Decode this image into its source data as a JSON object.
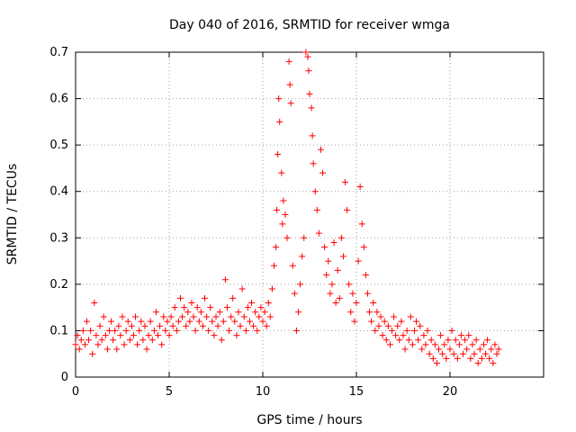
{
  "chart_data": {
    "type": "scatter",
    "title": "Day 040 of 2016, SRMTID for receiver wmga",
    "xlabel": "GPS time / hours",
    "ylabel": "SRMTID / TECUs",
    "xlim": [
      0,
      25
    ],
    "ylim": [
      0,
      0.7
    ],
    "xticks": [
      0,
      5,
      10,
      15,
      20
    ],
    "xtick_labels": [
      "0",
      "5",
      "10",
      "15",
      "20"
    ],
    "yticks": [
      0,
      0.1,
      0.2,
      0.3,
      0.4,
      0.5,
      0.6,
      0.7
    ],
    "ytick_labels": [
      "0",
      "0.1",
      "0.2",
      "0.3",
      "0.4",
      "0.5",
      "0.6",
      "0.7"
    ],
    "grid": true,
    "marker": "+",
    "color": "#ff0000",
    "series": [
      {
        "name": "SRMTID",
        "points": [
          [
            0.0,
            0.07
          ],
          [
            0.1,
            0.09
          ],
          [
            0.2,
            0.06
          ],
          [
            0.3,
            0.08
          ],
          [
            0.4,
            0.1
          ],
          [
            0.5,
            0.07
          ],
          [
            0.6,
            0.12
          ],
          [
            0.7,
            0.08
          ],
          [
            0.8,
            0.1
          ],
          [
            0.9,
            0.05
          ],
          [
            1.0,
            0.16
          ],
          [
            1.1,
            0.09
          ],
          [
            1.2,
            0.07
          ],
          [
            1.3,
            0.11
          ],
          [
            1.4,
            0.08
          ],
          [
            1.5,
            0.13
          ],
          [
            1.6,
            0.09
          ],
          [
            1.7,
            0.06
          ],
          [
            1.8,
            0.1
          ],
          [
            1.9,
            0.12
          ],
          [
            2.0,
            0.08
          ],
          [
            2.1,
            0.1
          ],
          [
            2.2,
            0.06
          ],
          [
            2.3,
            0.11
          ],
          [
            2.4,
            0.09
          ],
          [
            2.5,
            0.13
          ],
          [
            2.6,
            0.07
          ],
          [
            2.7,
            0.1
          ],
          [
            2.8,
            0.12
          ],
          [
            2.9,
            0.08
          ],
          [
            3.0,
            0.11
          ],
          [
            3.1,
            0.09
          ],
          [
            3.2,
            0.13
          ],
          [
            3.3,
            0.07
          ],
          [
            3.4,
            0.1
          ],
          [
            3.5,
            0.12
          ],
          [
            3.6,
            0.08
          ],
          [
            3.7,
            0.11
          ],
          [
            3.8,
            0.06
          ],
          [
            3.9,
            0.09
          ],
          [
            4.0,
            0.12
          ],
          [
            4.1,
            0.08
          ],
          [
            4.2,
            0.1
          ],
          [
            4.3,
            0.14
          ],
          [
            4.4,
            0.09
          ],
          [
            4.5,
            0.11
          ],
          [
            4.6,
            0.07
          ],
          [
            4.7,
            0.13
          ],
          [
            4.8,
            0.1
          ],
          [
            4.9,
            0.12
          ],
          [
            5.0,
            0.09
          ],
          [
            5.1,
            0.13
          ],
          [
            5.2,
            0.11
          ],
          [
            5.3,
            0.15
          ],
          [
            5.4,
            0.1
          ],
          [
            5.5,
            0.12
          ],
          [
            5.6,
            0.17
          ],
          [
            5.7,
            0.13
          ],
          [
            5.8,
            0.15
          ],
          [
            5.9,
            0.11
          ],
          [
            6.0,
            0.14
          ],
          [
            6.1,
            0.12
          ],
          [
            6.2,
            0.16
          ],
          [
            6.3,
            0.13
          ],
          [
            6.4,
            0.1
          ],
          [
            6.5,
            0.15
          ],
          [
            6.6,
            0.12
          ],
          [
            6.7,
            0.14
          ],
          [
            6.8,
            0.11
          ],
          [
            6.9,
            0.17
          ],
          [
            7.0,
            0.13
          ],
          [
            7.1,
            0.1
          ],
          [
            7.2,
            0.15
          ],
          [
            7.3,
            0.12
          ],
          [
            7.4,
            0.09
          ],
          [
            7.5,
            0.13
          ],
          [
            7.6,
            0.11
          ],
          [
            7.7,
            0.14
          ],
          [
            7.8,
            0.08
          ],
          [
            7.9,
            0.12
          ],
          [
            8.0,
            0.21
          ],
          [
            8.1,
            0.15
          ],
          [
            8.2,
            0.1
          ],
          [
            8.3,
            0.13
          ],
          [
            8.4,
            0.17
          ],
          [
            8.5,
            0.12
          ],
          [
            8.6,
            0.09
          ],
          [
            8.7,
            0.14
          ],
          [
            8.8,
            0.11
          ],
          [
            8.9,
            0.19
          ],
          [
            9.0,
            0.13
          ],
          [
            9.1,
            0.1
          ],
          [
            9.2,
            0.15
          ],
          [
            9.3,
            0.12
          ],
          [
            9.4,
            0.16
          ],
          [
            9.5,
            0.11
          ],
          [
            9.6,
            0.14
          ],
          [
            9.7,
            0.1
          ],
          [
            9.8,
            0.13
          ],
          [
            9.9,
            0.15
          ],
          [
            10.0,
            0.12
          ],
          [
            10.1,
            0.14
          ],
          [
            10.2,
            0.11
          ],
          [
            10.3,
            0.16
          ],
          [
            10.4,
            0.13
          ],
          [
            10.5,
            0.19
          ],
          [
            10.6,
            0.24
          ],
          [
            10.7,
            0.28
          ],
          [
            10.75,
            0.36
          ],
          [
            10.8,
            0.48
          ],
          [
            10.85,
            0.6
          ],
          [
            10.9,
            0.55
          ],
          [
            11.0,
            0.44
          ],
          [
            11.05,
            0.33
          ],
          [
            11.1,
            0.38
          ],
          [
            11.2,
            0.35
          ],
          [
            11.3,
            0.3
          ],
          [
            11.4,
            0.68
          ],
          [
            11.45,
            0.63
          ],
          [
            11.5,
            0.59
          ],
          [
            11.6,
            0.24
          ],
          [
            11.7,
            0.18
          ],
          [
            11.8,
            0.1
          ],
          [
            11.9,
            0.14
          ],
          [
            12.0,
            0.2
          ],
          [
            12.1,
            0.26
          ],
          [
            12.2,
            0.3
          ],
          [
            12.3,
            0.7
          ],
          [
            12.4,
            0.69
          ],
          [
            12.45,
            0.66
          ],
          [
            12.5,
            0.61
          ],
          [
            12.6,
            0.58
          ],
          [
            12.65,
            0.52
          ],
          [
            12.7,
            0.46
          ],
          [
            12.8,
            0.4
          ],
          [
            12.9,
            0.36
          ],
          [
            13.0,
            0.31
          ],
          [
            13.1,
            0.49
          ],
          [
            13.2,
            0.44
          ],
          [
            13.3,
            0.28
          ],
          [
            13.4,
            0.22
          ],
          [
            13.5,
            0.25
          ],
          [
            13.6,
            0.18
          ],
          [
            13.7,
            0.2
          ],
          [
            13.8,
            0.29
          ],
          [
            13.9,
            0.16
          ],
          [
            14.0,
            0.23
          ],
          [
            14.1,
            0.17
          ],
          [
            14.2,
            0.3
          ],
          [
            14.3,
            0.26
          ],
          [
            14.4,
            0.42
          ],
          [
            14.5,
            0.36
          ],
          [
            14.6,
            0.2
          ],
          [
            14.7,
            0.14
          ],
          [
            14.8,
            0.18
          ],
          [
            14.9,
            0.12
          ],
          [
            15.0,
            0.16
          ],
          [
            15.1,
            0.25
          ],
          [
            15.2,
            0.41
          ],
          [
            15.3,
            0.33
          ],
          [
            15.4,
            0.28
          ],
          [
            15.5,
            0.22
          ],
          [
            15.6,
            0.18
          ],
          [
            15.7,
            0.14
          ],
          [
            15.8,
            0.12
          ],
          [
            15.9,
            0.16
          ],
          [
            16.0,
            0.1
          ],
          [
            16.1,
            0.14
          ],
          [
            16.2,
            0.11
          ],
          [
            16.3,
            0.13
          ],
          [
            16.4,
            0.09
          ],
          [
            16.5,
            0.12
          ],
          [
            16.6,
            0.08
          ],
          [
            16.7,
            0.11
          ],
          [
            16.8,
            0.07
          ],
          [
            16.9,
            0.1
          ],
          [
            17.0,
            0.13
          ],
          [
            17.1,
            0.09
          ],
          [
            17.2,
            0.11
          ],
          [
            17.3,
            0.08
          ],
          [
            17.4,
            0.12
          ],
          [
            17.5,
            0.09
          ],
          [
            17.6,
            0.06
          ],
          [
            17.7,
            0.1
          ],
          [
            17.8,
            0.08
          ],
          [
            17.9,
            0.13
          ],
          [
            18.0,
            0.07
          ],
          [
            18.1,
            0.1
          ],
          [
            18.2,
            0.12
          ],
          [
            18.3,
            0.08
          ],
          [
            18.4,
            0.11
          ],
          [
            18.5,
            0.06
          ],
          [
            18.6,
            0.09
          ],
          [
            18.7,
            0.07
          ],
          [
            18.8,
            0.1
          ],
          [
            18.9,
            0.05
          ],
          [
            19.0,
            0.08
          ],
          [
            19.1,
            0.04
          ],
          [
            19.2,
            0.07
          ],
          [
            19.3,
            0.03
          ],
          [
            19.4,
            0.06
          ],
          [
            19.5,
            0.09
          ],
          [
            19.6,
            0.05
          ],
          [
            19.7,
            0.07
          ],
          [
            19.8,
            0.04
          ],
          [
            19.9,
            0.08
          ],
          [
            20.0,
            0.06
          ],
          [
            20.1,
            0.1
          ],
          [
            20.2,
            0.05
          ],
          [
            20.3,
            0.08
          ],
          [
            20.4,
            0.04
          ],
          [
            20.5,
            0.07
          ],
          [
            20.6,
            0.09
          ],
          [
            20.7,
            0.05
          ],
          [
            20.8,
            0.08
          ],
          [
            20.9,
            0.06
          ],
          [
            21.0,
            0.09
          ],
          [
            21.1,
            0.04
          ],
          [
            21.2,
            0.07
          ],
          [
            21.3,
            0.05
          ],
          [
            21.4,
            0.08
          ],
          [
            21.5,
            0.03
          ],
          [
            21.6,
            0.06
          ],
          [
            21.7,
            0.04
          ],
          [
            21.8,
            0.07
          ],
          [
            21.9,
            0.05
          ],
          [
            22.0,
            0.08
          ],
          [
            22.1,
            0.04
          ],
          [
            22.2,
            0.06
          ],
          [
            22.3,
            0.03
          ],
          [
            22.4,
            0.07
          ],
          [
            22.5,
            0.05
          ],
          [
            22.6,
            0.06
          ]
        ]
      }
    ]
  }
}
